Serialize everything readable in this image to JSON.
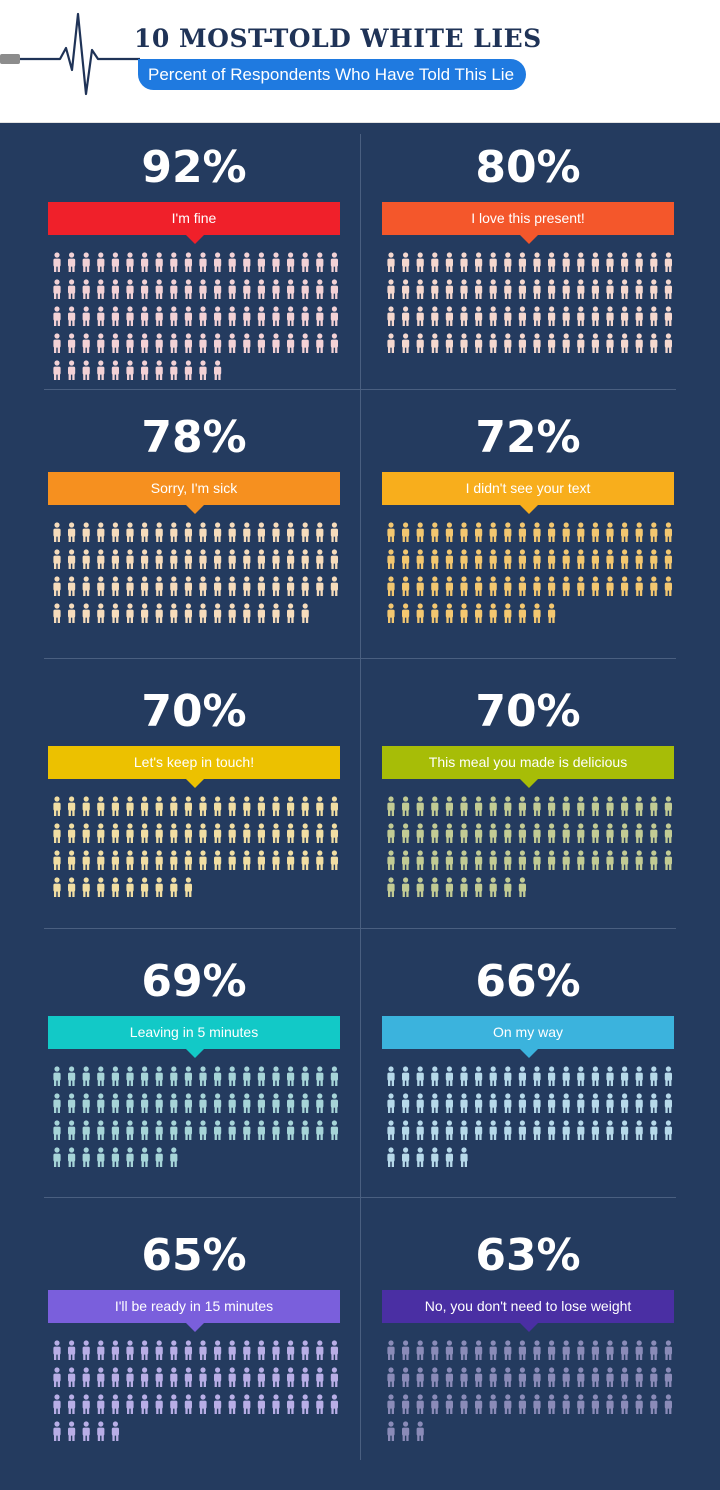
{
  "header": {
    "title": "10 MOST-TOLD WHITE LIES",
    "subtitle": "Percent of Respondents Who Have Told This Lie"
  },
  "chart_data": {
    "type": "pictograph",
    "title": "10 MOST-TOLD WHITE LIES",
    "subtitle": "Percent of Respondents Who Have Told This Lie",
    "unit": "%",
    "items": [
      {
        "label": "I'm fine",
        "value": 92,
        "display": "92%",
        "color": "#f0202a",
        "icon_color": "#f3d2d6"
      },
      {
        "label": "I love this present!",
        "value": 80,
        "display": "80%",
        "color": "#f4572b",
        "icon_color": "#f5d8cf"
      },
      {
        "label": "Sorry, I'm sick",
        "value": 78,
        "display": "78%",
        "color": "#f6901f",
        "icon_color": "#f6dcbc"
      },
      {
        "label": "I didn't see your text",
        "value": 72,
        "display": "72%",
        "color": "#f8ae1c",
        "icon_color": "#f3c770"
      },
      {
        "label": "Let's keep in touch!",
        "value": 70,
        "display": "70%",
        "color": "#ecc100",
        "icon_color": "#f1dea3"
      },
      {
        "label": "This meal you made is delicious",
        "value": 70,
        "display": "70%",
        "color": "#a7bd07",
        "icon_color": "#c2cb94"
      },
      {
        "label": "Leaving in 5 minutes",
        "value": 69,
        "display": "69%",
        "color": "#12c9c7",
        "icon_color": "#a6d4d8"
      },
      {
        "label": "On my way",
        "value": 66,
        "display": "66%",
        "color": "#3bb3dd",
        "icon_color": "#b6d9ea"
      },
      {
        "label": "I'll be ready in 15 minutes",
        "value": 65,
        "display": "65%",
        "color": "#7a5fdc",
        "icon_color": "#b8aee6"
      },
      {
        "label": "No, you don't need to lose weight",
        "value": 63,
        "display": "63%",
        "color": "#4a2fa3",
        "icon_color": "#8a8bb8"
      }
    ]
  }
}
